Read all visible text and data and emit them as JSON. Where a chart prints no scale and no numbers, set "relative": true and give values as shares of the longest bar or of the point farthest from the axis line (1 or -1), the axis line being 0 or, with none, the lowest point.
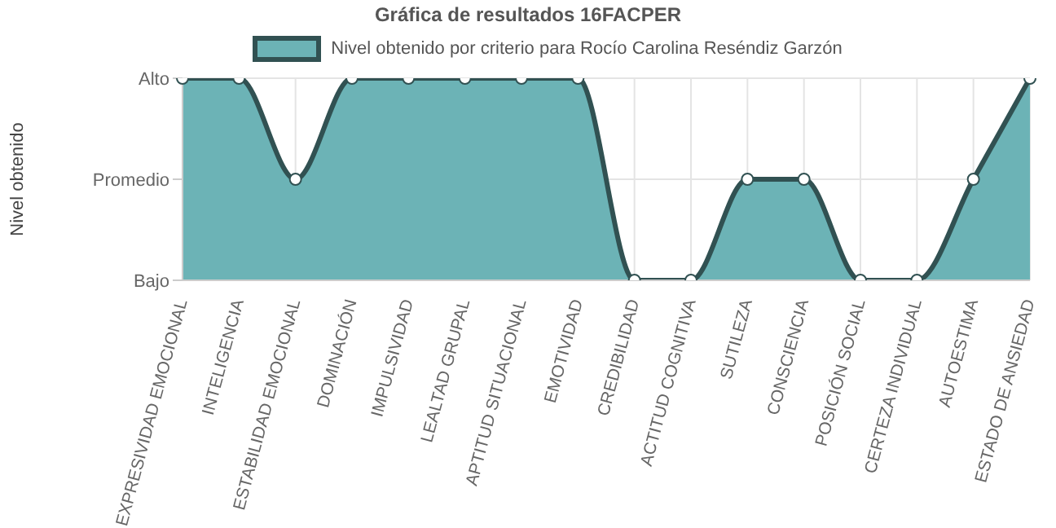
{
  "chart_data": {
    "type": "area",
    "title": "Gráfica de resultados 16FACPER",
    "ylabel": "Nivel obtenido",
    "categories": [
      "EXPRESIVIDAD EMOCIONAL",
      "INTELIGENCIA",
      "ESTABILIDAD EMOCIONAL",
      "DOMINACIÓN",
      "IMPULSIVIDAD",
      "LEALTAD GRUPAL",
      "APTITUD SITUACIONAL",
      "EMOTIVIDAD",
      "CREDIBILIDAD",
      "ACTITUD COGNITIVA",
      "SUTILEZA",
      "CONSCIENCIA",
      "POSICIÓN SOCIAL",
      "CERTEZA INDIVIDUAL",
      "AUTOESTIMA",
      "ESTADO DE ANSIEDAD"
    ],
    "series": [
      {
        "name": "Nivel obtenido por criterio para Rocío Carolina Reséndiz Garzón",
        "color": "#6cb3b6",
        "values": [
          1,
          1,
          0.5,
          1,
          1,
          1,
          1,
          1,
          0,
          0,
          0.5,
          0.5,
          0,
          0,
          0.5,
          1
        ]
      }
    ],
    "relative": true,
    "annotations": [
      "Bajo",
      "Promedio",
      "Alto"
    ],
    "grid": true,
    "legend": "top",
    "marker": "circle"
  }
}
